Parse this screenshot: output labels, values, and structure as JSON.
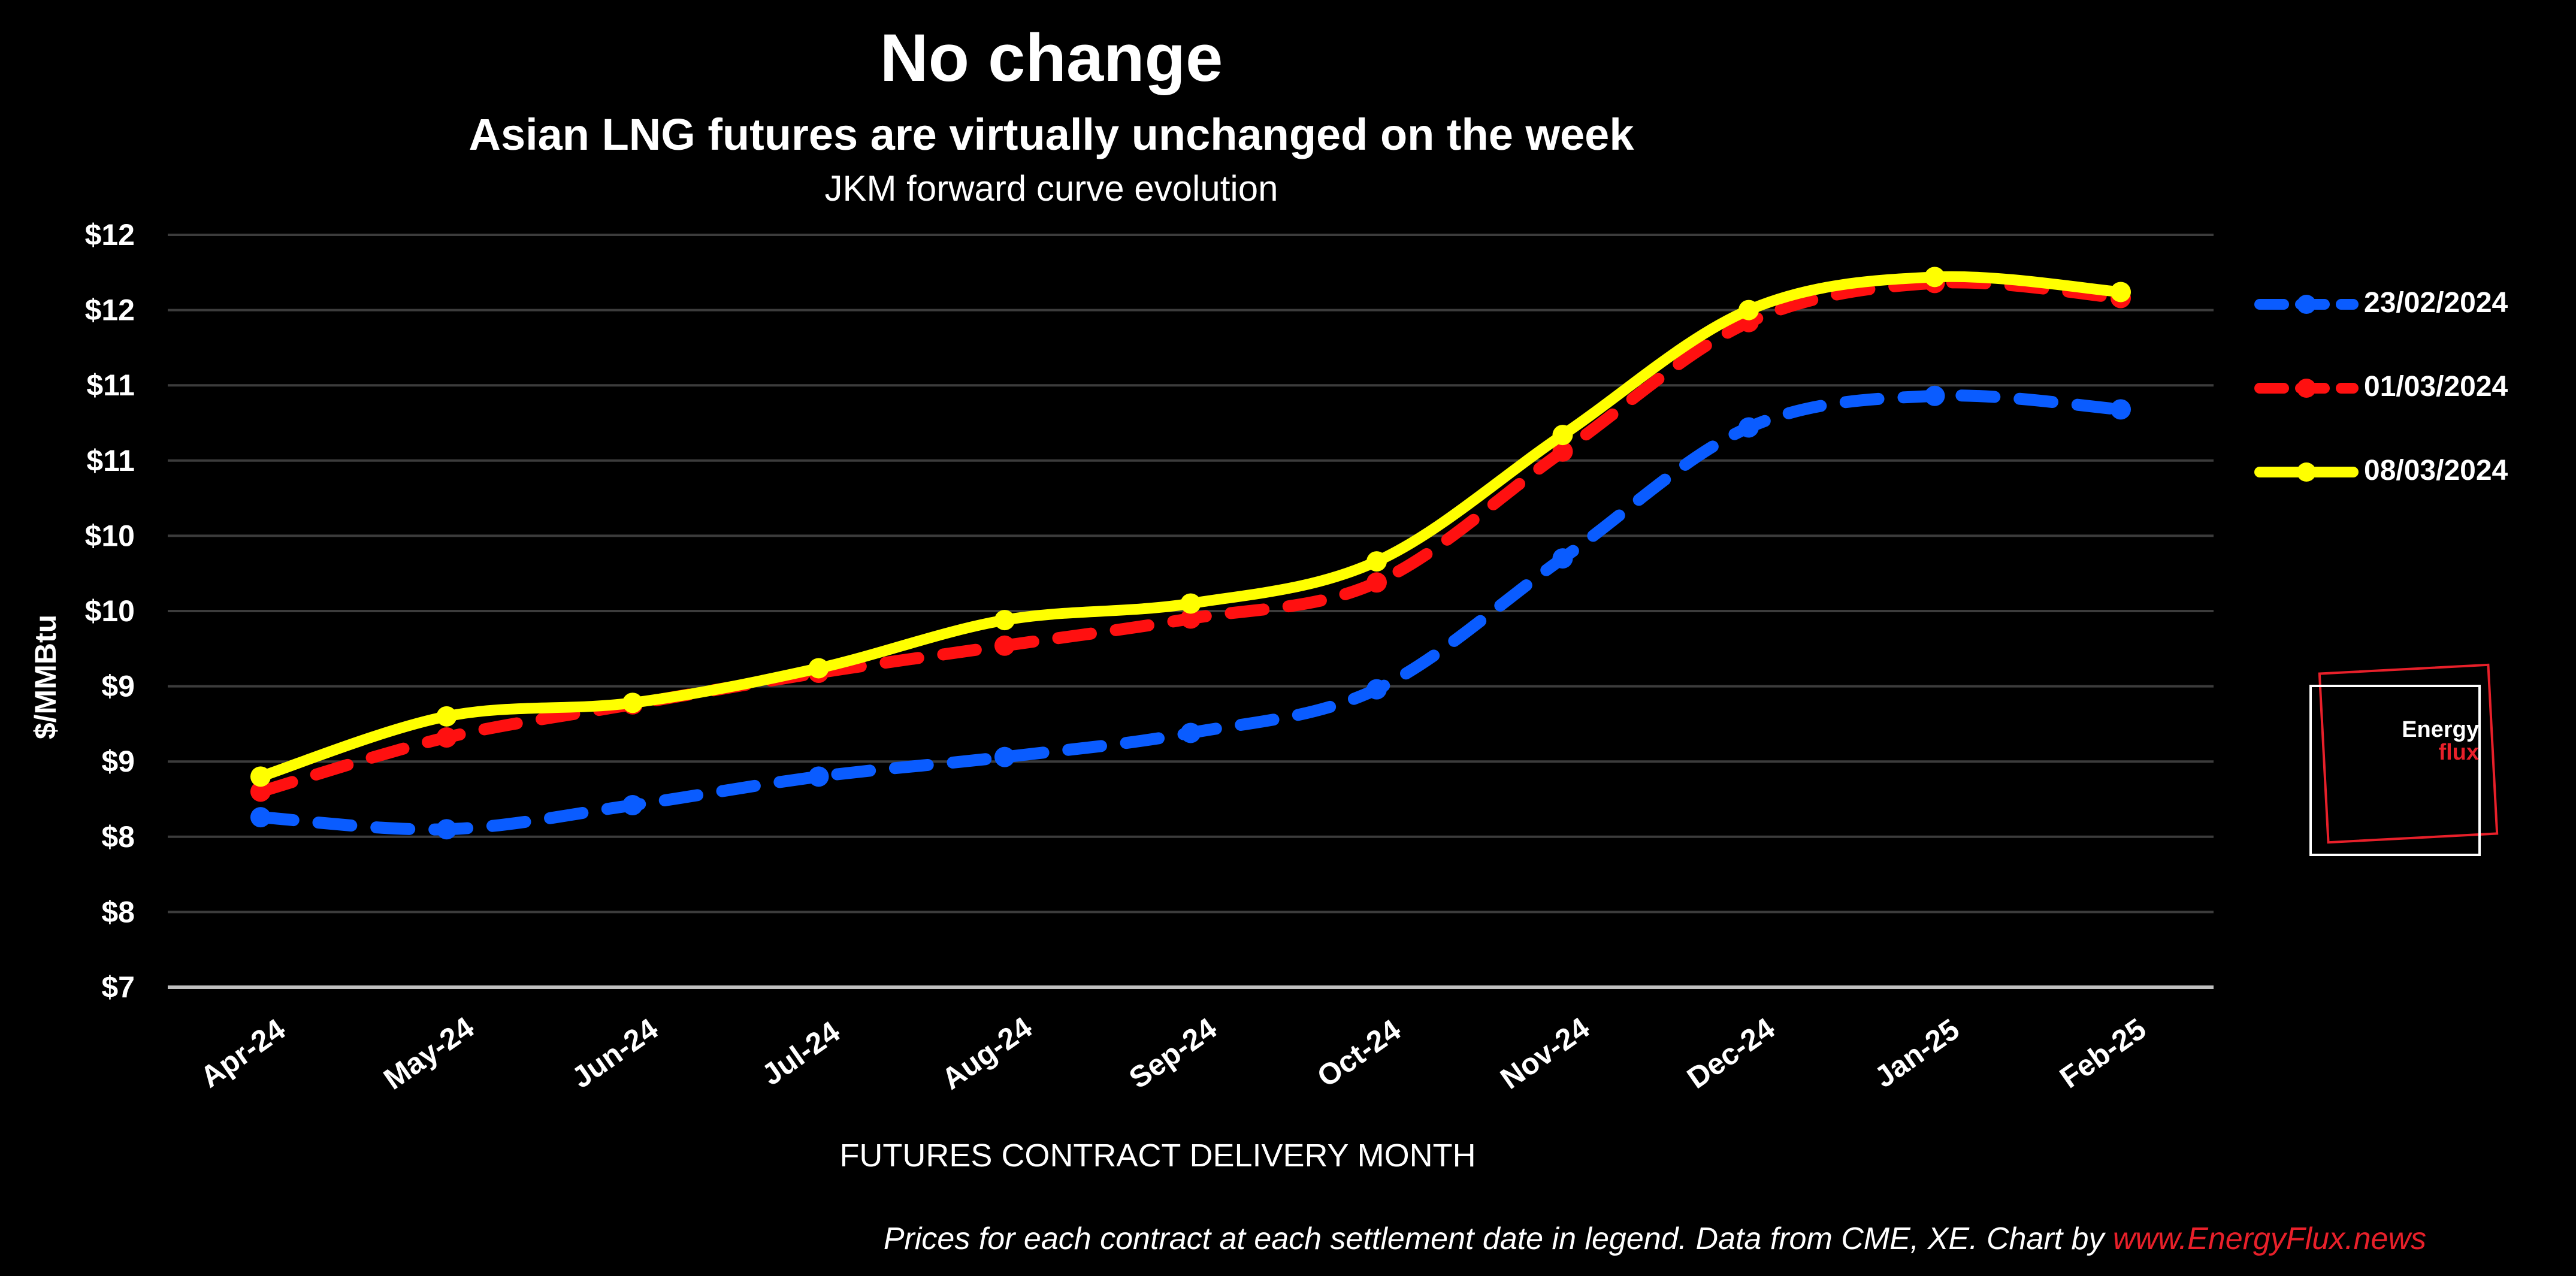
{
  "title": "No change",
  "subtitle": "Asian LNG futures are virtually unchanged on the week",
  "subtitle2": "JKM forward curve evolution",
  "footer": {
    "text": "Prices for each contract at each settlement date in legend. Data from CME, XE. Chart by ",
    "link": "www.EnergyFlux.news",
    "link_color": "#e8202a"
  },
  "logo": {
    "line1": "Energy",
    "line2": "flux"
  },
  "chart_data": {
    "type": "line",
    "xlabel": "FUTURES CONTRACT DELIVERY MONTH",
    "ylabel": "$/MMBtu",
    "categories": [
      "Apr-24",
      "May-24",
      "Jun-24",
      "Jul-24",
      "Aug-24",
      "Sep-24",
      "Oct-24",
      "Nov-24",
      "Dec-24",
      "Jan-25",
      "Feb-25"
    ],
    "ylim": [
      7,
      12
    ],
    "yticks": [
      7,
      7.5,
      8,
      8.5,
      9,
      9.5,
      10,
      10.5,
      11,
      11.5,
      12
    ],
    "ytick_labels": [
      "$7",
      "$8",
      "$8",
      "$9",
      "$9",
      "$10",
      "$10",
      "$11",
      "$11",
      "$12",
      "$12"
    ],
    "grid": true,
    "legend_position": "right",
    "series": [
      {
        "name": "23/02/2024",
        "color": "#0a5cff",
        "dashed": true,
        "smooth": false,
        "values": [
          8.13,
          8.05,
          8.21,
          8.4,
          8.53,
          8.69,
          8.98,
          9.85,
          10.72,
          10.93,
          10.84
        ]
      },
      {
        "name": "01/03/2024",
        "color": "#ff1010",
        "dashed": true,
        "smooth": false,
        "values": [
          8.3,
          8.66,
          8.88,
          9.09,
          9.27,
          9.45,
          9.69,
          10.56,
          11.42,
          11.68,
          11.58
        ]
      },
      {
        "name": "08/03/2024",
        "color": "#ffff00",
        "dashed": false,
        "smooth": true,
        "values": [
          8.4,
          8.8,
          8.89,
          9.12,
          9.44,
          9.55,
          9.83,
          10.67,
          11.5,
          11.72,
          11.62
        ]
      }
    ]
  }
}
